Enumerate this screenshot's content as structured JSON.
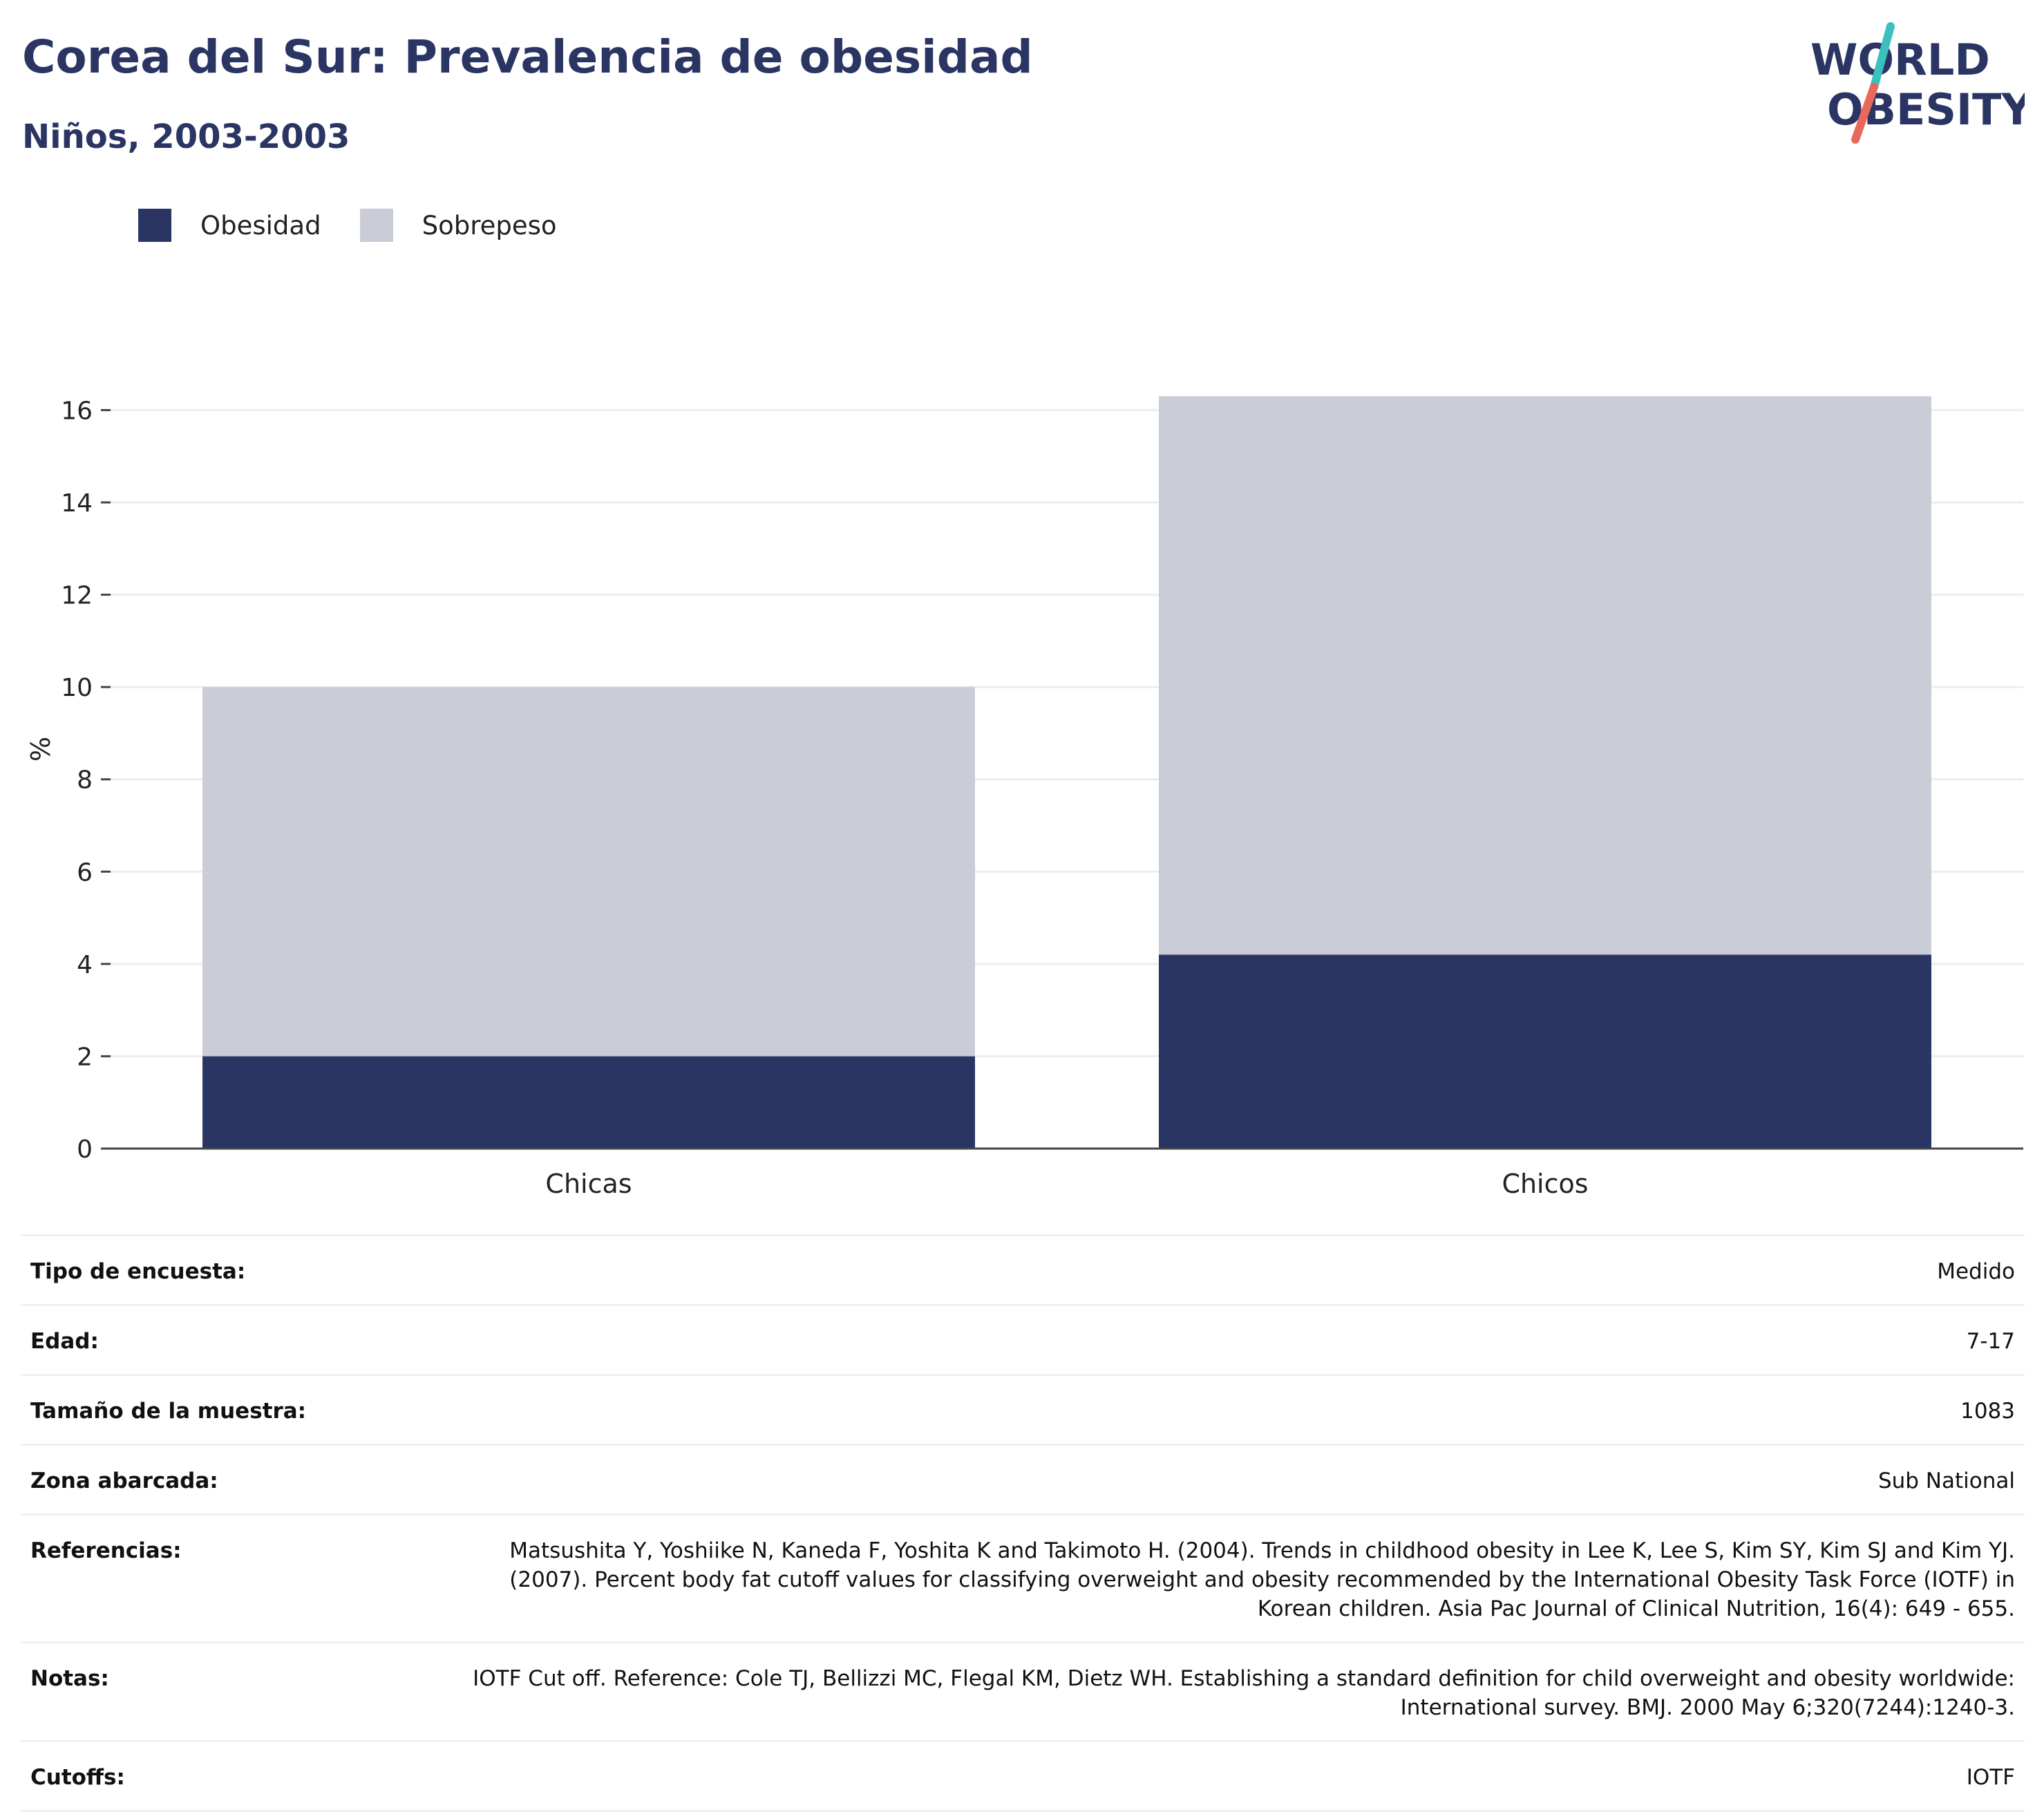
{
  "header": {
    "title": "Corea del Sur: Prevalencia de obesidad",
    "subtitle": "Niños, 2003-2003"
  },
  "logo": {
    "line1": "WORLD",
    "line2": "OBESITY",
    "colors": {
      "text": "#2a3563",
      "slash_top": "#3bbfbf",
      "slash_bottom": "#e8685a"
    }
  },
  "colors": {
    "obesity": "#2a3563",
    "overweight": "#caccd8",
    "grid": "#ececf2",
    "axis": "#444444"
  },
  "legend": [
    {
      "label": "Obesidad",
      "color": "#2a3563"
    },
    {
      "label": "Sobrepeso",
      "color": "#caccd8"
    }
  ],
  "chart_data": {
    "type": "bar",
    "stacked": true,
    "title": "Corea del Sur: Prevalencia de obesidad",
    "subtitle": "Niños, 2003-2003",
    "categories": [
      "Chicas",
      "Chicos"
    ],
    "series": [
      {
        "name": "Obesidad",
        "values": [
          2.0,
          4.2
        ]
      },
      {
        "name": "Sobrepeso",
        "values": [
          8.0,
          12.1
        ]
      }
    ],
    "ylabel": "%",
    "xlabel": "",
    "ylim": [
      0,
      16.8
    ],
    "yticks": [
      0,
      2,
      4,
      6,
      8,
      10,
      12,
      14,
      16
    ],
    "grid": true,
    "legend_position": "top-left"
  },
  "info": {
    "rows": [
      {
        "label": "Tipo de encuesta:",
        "value": "Medido"
      },
      {
        "label": "Edad:",
        "value": "7-17"
      },
      {
        "label": "Tamaño de la muestra:",
        "value": "1083"
      },
      {
        "label": "Zona abarcada:",
        "value": "Sub National"
      },
      {
        "label": "Referencias:",
        "value": "Matsushita Y, Yoshiike N, Kaneda F, Yoshita K and Takimoto H. (2004). Trends in childhood obesity in Lee K, Lee S, Kim SY, Kim SJ and Kim YJ. (2007). Percent body fat cutoff values for classifying overweight and obesity recommended by the International Obesity Task Force (IOTF) in Korean children. Asia Pac Journal of Clinical Nutrition, 16(4): 649 - 655."
      },
      {
        "label": "Notas:",
        "value": "IOTF Cut off. Reference: Cole TJ, Bellizzi MC, Flegal KM, Dietz WH. Establishing a standard definition for child overweight and obesity worldwide: International survey. BMJ. 2000 May 6;320(7244):1240-3."
      },
      {
        "label": "Cutoffs:",
        "value": "IOTF"
      }
    ]
  }
}
